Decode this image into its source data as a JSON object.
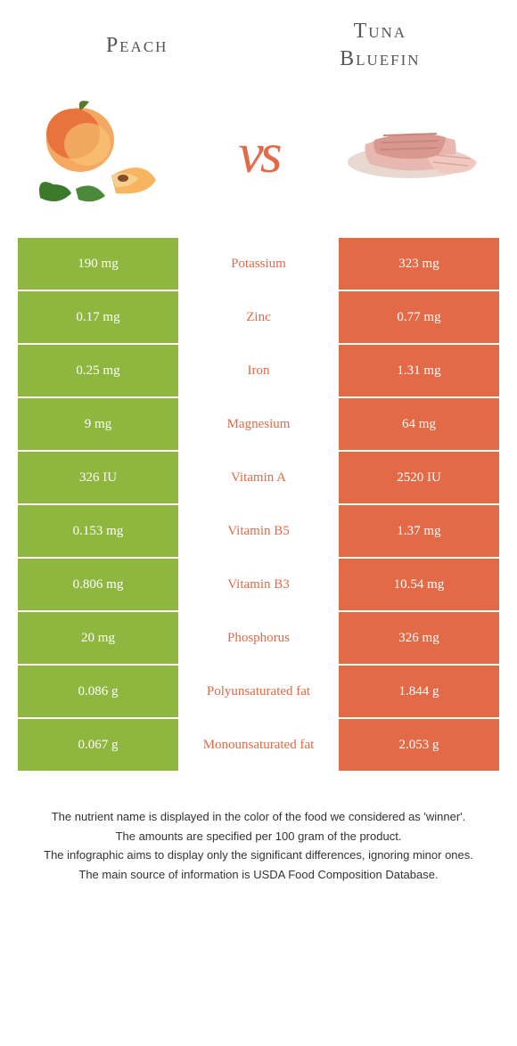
{
  "header": {
    "left_title": "Peach",
    "right_title_line1": "Tuna",
    "right_title_line2": "Bluefin",
    "vs": "vs"
  },
  "colors": {
    "left_bar": "#8fb63f",
    "right_bar": "#e26a47",
    "mid_text": "#e26a47",
    "background": "#ffffff"
  },
  "rows": [
    {
      "left": "190 mg",
      "label": "Potassium",
      "right": "323 mg"
    },
    {
      "left": "0.17 mg",
      "label": "Zinc",
      "right": "0.77 mg"
    },
    {
      "left": "0.25 mg",
      "label": "Iron",
      "right": "1.31 mg"
    },
    {
      "left": "9 mg",
      "label": "Magnesium",
      "right": "64 mg"
    },
    {
      "left": "326 IU",
      "label": "Vitamin A",
      "right": "2520 IU"
    },
    {
      "left": "0.153 mg",
      "label": "Vitamin B5",
      "right": "1.37 mg"
    },
    {
      "left": "0.806 mg",
      "label": "Vitamin B3",
      "right": "10.54 mg"
    },
    {
      "left": "20 mg",
      "label": "Phosphorus",
      "right": "326 mg"
    },
    {
      "left": "0.086 g",
      "label": "Polyunsaturated fat",
      "right": "1.844 g"
    },
    {
      "left": "0.067 g",
      "label": "Monounsaturated fat",
      "right": "2.053 g"
    }
  ],
  "footnotes": [
    "The nutrient name is displayed in the color of the food we considered as 'winner'.",
    "The amounts are specified per 100 gram of the product.",
    "The infographic aims to display only the significant differences, ignoring minor ones.",
    "The main source of information is USDA Food Composition Database."
  ]
}
